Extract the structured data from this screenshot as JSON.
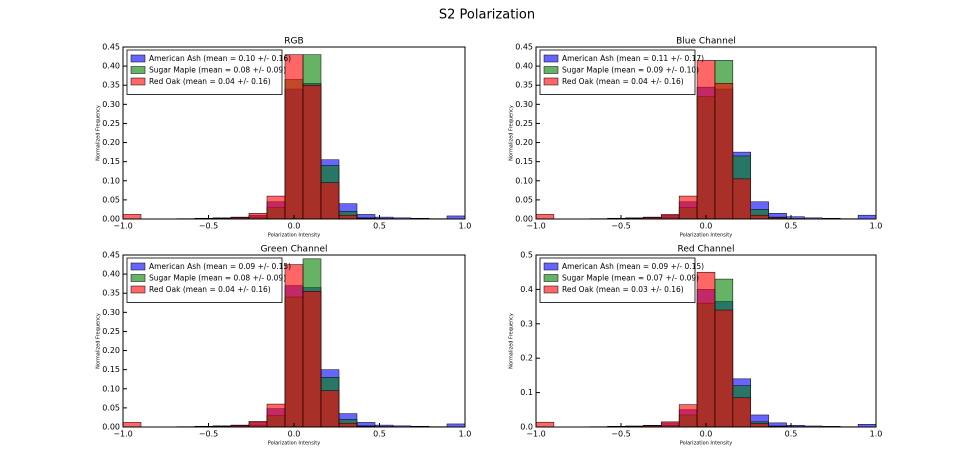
{
  "title": "S2 Polarization",
  "chart_data": [
    {
      "type": "histogram",
      "title": "RGB",
      "xlabel": "Polarization Intensity",
      "ylabel": "Normalized Frequency",
      "bins": [
        -1,
        -0.8947,
        -0.7895,
        -0.6842,
        -0.5789,
        -0.4737,
        -0.3684,
        -0.2632,
        -0.1579,
        -0.0526,
        0.0526,
        0.1579,
        0.2632,
        0.3684,
        0.4737,
        0.5789,
        0.6842,
        0.7895,
        0.8947,
        1
      ],
      "xlim": [
        -1,
        1
      ],
      "xticks": [
        {
          "value": -1,
          "label": "−1.0"
        },
        {
          "value": -0.5,
          "label": "−0.5"
        },
        {
          "value": 0,
          "label": "0.0"
        },
        {
          "value": 0.5,
          "label": "0.5"
        },
        {
          "value": 1,
          "label": "1.0"
        }
      ],
      "ylim": [
        0,
        0.45
      ],
      "yticks": [
        {
          "value": 0,
          "label": "0.00"
        },
        {
          "value": 0.05,
          "label": "0.05"
        },
        {
          "value": 0.1,
          "label": "0.10"
        },
        {
          "value": 0.15,
          "label": "0.15"
        },
        {
          "value": 0.2,
          "label": "0.20"
        },
        {
          "value": 0.25,
          "label": "0.25"
        },
        {
          "value": 0.3,
          "label": "0.30"
        },
        {
          "value": 0.35,
          "label": "0.35"
        },
        {
          "value": 0.4,
          "label": "0.40"
        },
        {
          "value": 0.45,
          "label": "0.45"
        }
      ],
      "legend": "upper left",
      "series": [
        {
          "name": "American Ash (mean = 0.10 +/- 0.16)",
          "color": "#0000ff",
          "values": [
            0,
            0,
            0,
            0.001,
            0.002,
            0.003,
            0.005,
            0.01,
            0.045,
            0.34,
            0.355,
            0.155,
            0.04,
            0.012,
            0.005,
            0.003,
            0.002,
            0.001,
            0.008
          ]
        },
        {
          "name": "Sugar Maple (mean = 0.08 +/- 0.09)",
          "color": "#008000",
          "values": [
            0,
            0,
            0,
            0,
            0.001,
            0.002,
            0.003,
            0.005,
            0.03,
            0.365,
            0.43,
            0.14,
            0.02,
            0.003,
            0.001,
            0,
            0,
            0,
            0
          ]
        },
        {
          "name": "Red Oak (mean = 0.04 +/- 0.16)",
          "color": "#ff0000",
          "values": [
            0.012,
            0,
            0,
            0,
            0.002,
            0.002,
            0.004,
            0.015,
            0.06,
            0.43,
            0.35,
            0.095,
            0.01,
            0.002,
            0.001,
            0,
            0,
            0,
            0
          ]
        }
      ]
    },
    {
      "type": "histogram",
      "title": "Blue Channel",
      "xlabel": "Polarization Intensity",
      "ylabel": "Normalized Frequency",
      "bins": [
        -1,
        -0.8947,
        -0.7895,
        -0.6842,
        -0.5789,
        -0.4737,
        -0.3684,
        -0.2632,
        -0.1579,
        -0.0526,
        0.0526,
        0.1579,
        0.2632,
        0.3684,
        0.4737,
        0.5789,
        0.6842,
        0.7895,
        0.8947,
        1
      ],
      "xlim": [
        -1,
        1
      ],
      "xticks": [
        {
          "value": -1,
          "label": "−1.0"
        },
        {
          "value": -0.5,
          "label": "−0.5"
        },
        {
          "value": 0,
          "label": "0.0"
        },
        {
          "value": 0.5,
          "label": "0.5"
        },
        {
          "value": 1,
          "label": "1.0"
        }
      ],
      "ylim": [
        0,
        0.45
      ],
      "yticks": [
        {
          "value": 0,
          "label": "0.00"
        },
        {
          "value": 0.05,
          "label": "0.05"
        },
        {
          "value": 0.1,
          "label": "0.10"
        },
        {
          "value": 0.15,
          "label": "0.15"
        },
        {
          "value": 0.2,
          "label": "0.20"
        },
        {
          "value": 0.25,
          "label": "0.25"
        },
        {
          "value": 0.3,
          "label": "0.30"
        },
        {
          "value": 0.35,
          "label": "0.35"
        },
        {
          "value": 0.4,
          "label": "0.40"
        },
        {
          "value": 0.45,
          "label": "0.45"
        }
      ],
      "legend": "upper left",
      "series": [
        {
          "name": "American Ash (mean = 0.11 +/- 0.17)",
          "color": "#0000ff",
          "values": [
            0,
            0,
            0,
            0.001,
            0.002,
            0.003,
            0.005,
            0.01,
            0.045,
            0.345,
            0.34,
            0.175,
            0.045,
            0.015,
            0.006,
            0.003,
            0.002,
            0.001,
            0.01
          ]
        },
        {
          "name": "Sugar Maple (mean = 0.09 +/- 0.10)",
          "color": "#008000",
          "values": [
            0,
            0,
            0,
            0,
            0.001,
            0.002,
            0.003,
            0.005,
            0.03,
            0.32,
            0.415,
            0.165,
            0.025,
            0.005,
            0.001,
            0,
            0,
            0,
            0
          ]
        },
        {
          "name": "Red Oak (mean = 0.04 +/- 0.16)",
          "color": "#ff0000",
          "values": [
            0.012,
            0,
            0,
            0,
            0.002,
            0.002,
            0.004,
            0.012,
            0.06,
            0.415,
            0.355,
            0.105,
            0.01,
            0.003,
            0.001,
            0,
            0,
            0,
            0
          ]
        }
      ]
    },
    {
      "type": "histogram",
      "title": "Green Channel",
      "xlabel": "Polarization Intensity",
      "ylabel": "Normalized Frequency",
      "bins": [
        -1,
        -0.8947,
        -0.7895,
        -0.6842,
        -0.5789,
        -0.4737,
        -0.3684,
        -0.2632,
        -0.1579,
        -0.0526,
        0.0526,
        0.1579,
        0.2632,
        0.3684,
        0.4737,
        0.5789,
        0.6842,
        0.7895,
        0.8947,
        1
      ],
      "xlim": [
        -1,
        1
      ],
      "xticks": [
        {
          "value": -1,
          "label": "−1.0"
        },
        {
          "value": -0.5,
          "label": "−0.5"
        },
        {
          "value": 0,
          "label": "0.0"
        },
        {
          "value": 0.5,
          "label": "0.5"
        },
        {
          "value": 1,
          "label": "1.0"
        }
      ],
      "ylim": [
        0,
        0.45
      ],
      "yticks": [
        {
          "value": 0,
          "label": "0.00"
        },
        {
          "value": 0.05,
          "label": "0.05"
        },
        {
          "value": 0.1,
          "label": "0.10"
        },
        {
          "value": 0.15,
          "label": "0.15"
        },
        {
          "value": 0.2,
          "label": "0.20"
        },
        {
          "value": 0.25,
          "label": "0.25"
        },
        {
          "value": 0.3,
          "label": "0.30"
        },
        {
          "value": 0.35,
          "label": "0.35"
        },
        {
          "value": 0.4,
          "label": "0.40"
        },
        {
          "value": 0.45,
          "label": "0.45"
        }
      ],
      "legend": "upper left",
      "series": [
        {
          "name": "American Ash (mean = 0.09 +/- 0.15)",
          "color": "#0000ff",
          "values": [
            0,
            0,
            0,
            0.001,
            0.002,
            0.003,
            0.005,
            0.012,
            0.048,
            0.37,
            0.365,
            0.15,
            0.035,
            0.012,
            0.005,
            0.003,
            0.002,
            0.001,
            0.008
          ]
        },
        {
          "name": "Sugar Maple (mean = 0.08 +/- 0.09)",
          "color": "#008000",
          "values": [
            0,
            0,
            0,
            0,
            0.001,
            0.002,
            0.003,
            0.005,
            0.03,
            0.34,
            0.44,
            0.13,
            0.02,
            0.003,
            0.001,
            0,
            0,
            0,
            0
          ]
        },
        {
          "name": "Red Oak (mean = 0.04 +/- 0.16)",
          "color": "#ff0000",
          "values": [
            0.012,
            0,
            0,
            0,
            0.002,
            0.002,
            0.004,
            0.015,
            0.06,
            0.425,
            0.355,
            0.095,
            0.01,
            0.002,
            0.001,
            0,
            0,
            0,
            0
          ]
        }
      ]
    },
    {
      "type": "histogram",
      "title": "Red Channel",
      "xlabel": "Polarization Intensity",
      "ylabel": "Normalized Frequency",
      "bins": [
        -1,
        -0.8947,
        -0.7895,
        -0.6842,
        -0.5789,
        -0.4737,
        -0.3684,
        -0.2632,
        -0.1579,
        -0.0526,
        0.0526,
        0.1579,
        0.2632,
        0.3684,
        0.4737,
        0.5789,
        0.6842,
        0.7895,
        0.8947,
        1
      ],
      "xlim": [
        -1,
        1
      ],
      "xticks": [
        {
          "value": -1,
          "label": "−1.0"
        },
        {
          "value": -0.5,
          "label": "−0.5"
        },
        {
          "value": 0,
          "label": "0.0"
        },
        {
          "value": 0.5,
          "label": "0.5"
        },
        {
          "value": 1,
          "label": "1.0"
        }
      ],
      "ylim": [
        0,
        0.5
      ],
      "yticks": [
        {
          "value": 0,
          "label": "0.0"
        },
        {
          "value": 0.1,
          "label": "0.1"
        },
        {
          "value": 0.2,
          "label": "0.2"
        },
        {
          "value": 0.3,
          "label": "0.3"
        },
        {
          "value": 0.4,
          "label": "0.4"
        },
        {
          "value": 0.5,
          "label": "0.5"
        }
      ],
      "legend": "upper left",
      "series": [
        {
          "name": "American Ash (mean = 0.09 +/- 0.15)",
          "color": "#0000ff",
          "values": [
            0,
            0,
            0,
            0.001,
            0.002,
            0.003,
            0.005,
            0.012,
            0.05,
            0.4,
            0.365,
            0.14,
            0.035,
            0.012,
            0.005,
            0.003,
            0.002,
            0.001,
            0.008
          ]
        },
        {
          "name": "Sugar Maple (mean = 0.07 +/- 0.09)",
          "color": "#008000",
          "values": [
            0,
            0,
            0,
            0,
            0.001,
            0.002,
            0.003,
            0.005,
            0.035,
            0.36,
            0.43,
            0.12,
            0.015,
            0.003,
            0.001,
            0,
            0,
            0,
            0
          ]
        },
        {
          "name": "Red Oak (mean = 0.03 +/- 0.16)",
          "color": "#ff0000",
          "values": [
            0.014,
            0,
            0,
            0,
            0.002,
            0.002,
            0.004,
            0.015,
            0.065,
            0.45,
            0.34,
            0.085,
            0.01,
            0.002,
            0.001,
            0,
            0,
            0,
            0
          ]
        }
      ]
    }
  ]
}
